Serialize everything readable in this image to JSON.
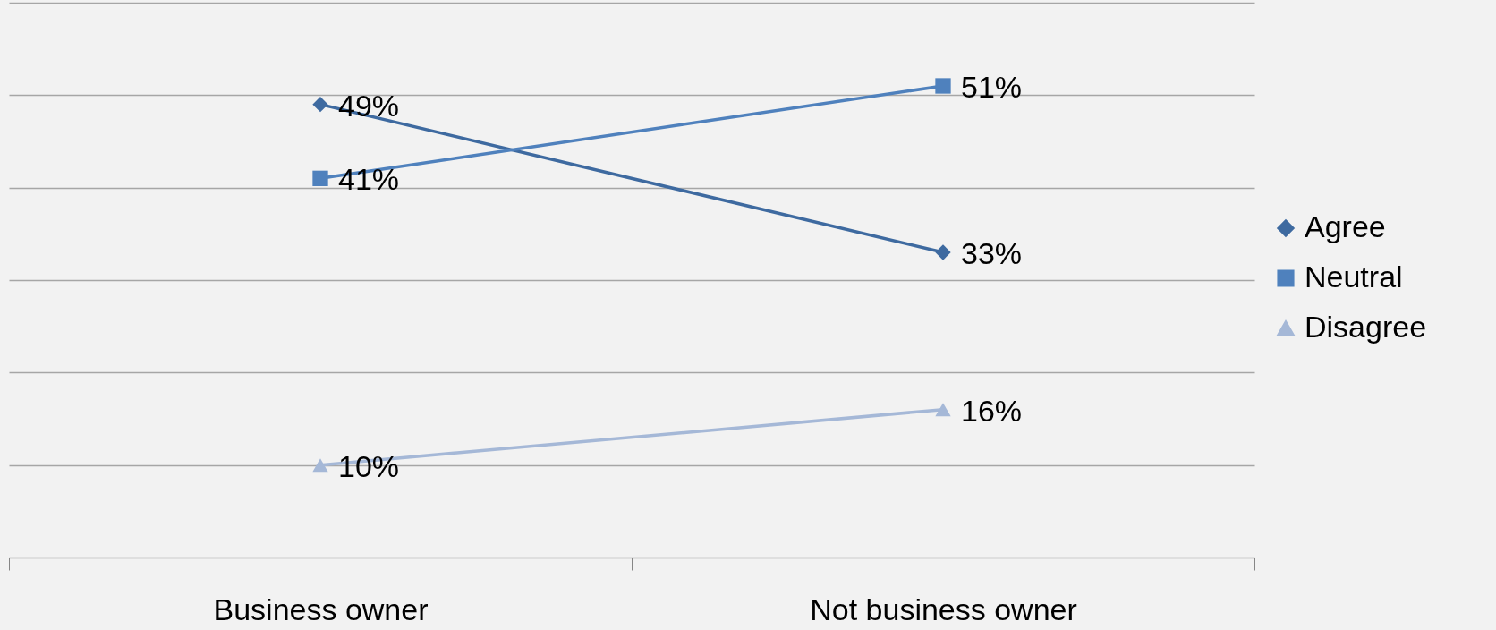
{
  "chart_data": {
    "type": "line",
    "categories": [
      "Business owner",
      "Not business owner"
    ],
    "series": [
      {
        "name": "Agree",
        "color": "#3e6aa0",
        "marker": "diamond",
        "values": [
          49,
          33
        ],
        "value_labels": [
          "49%",
          "33%"
        ]
      },
      {
        "name": "Neutral",
        "color": "#4f81bd",
        "marker": "square",
        "values": [
          41,
          51
        ],
        "value_labels": [
          "41%",
          "51%"
        ]
      },
      {
        "name": "Disagree",
        "color": "#a5b8d7",
        "marker": "triangle",
        "values": [
          10,
          16
        ],
        "value_labels": [
          "10%",
          "16%"
        ]
      }
    ],
    "grid": "y",
    "legend": "right",
    "tick_labels": "x"
  }
}
